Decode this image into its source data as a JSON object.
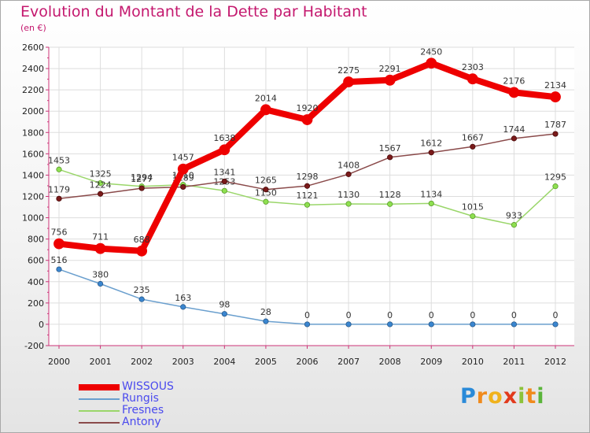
{
  "title": "Evolution du Montant de la Dette par Habitant",
  "subtitle": "(en €)",
  "logo": {
    "letters": [
      "P",
      "r",
      "o",
      "x",
      "i",
      "t",
      "i"
    ],
    "colors": [
      "#2a8ad8",
      "#f08a1c",
      "#f0b21c",
      "#e23a1c",
      "#8cc33a",
      "#f08a1c",
      "#5ab43a"
    ]
  },
  "chart_data": {
    "type": "line",
    "title": "Evolution du Montant de la Dette par Habitant",
    "ylabel": "(en €)",
    "x": [
      "2000",
      "2001",
      "2002",
      "2003",
      "2004",
      "2005",
      "2006",
      "2007",
      "2008",
      "2009",
      "2010",
      "2011",
      "2012"
    ],
    "ylim": [
      -200,
      2600
    ],
    "yticks": [
      "-200",
      "0",
      "200",
      "400",
      "600",
      "800",
      "1000",
      "1200",
      "1400",
      "1600",
      "1800",
      "2000",
      "2200",
      "2400",
      "2600"
    ],
    "grid": true,
    "legend_position": "bottom-left",
    "series": [
      {
        "name": "WISSOUS",
        "color": "#ee0000",
        "values": [
          756,
          711,
          688,
          1457,
          1638,
          2014,
          1920,
          2275,
          2291,
          2450,
          2303,
          2176,
          2134
        ],
        "labels": [
          "756",
          "711",
          "688",
          "1457",
          "1638",
          "2014",
          "1920",
          "2275",
          "2291",
          "2450",
          "2303",
          "2176",
          "2134"
        ]
      },
      {
        "name": "Rungis",
        "color": "#6a9fce",
        "values": [
          516,
          380,
          235,
          163,
          98,
          28,
          0,
          0,
          0,
          0,
          0,
          0,
          0
        ],
        "labels": [
          "516",
          "380",
          "235",
          "163",
          "98",
          "28",
          "0",
          "0",
          "0",
          "0",
          "0",
          "0",
          "0"
        ]
      },
      {
        "name": "Fresnes",
        "color": "#9ad66a",
        "values": [
          1453,
          1325,
          1294,
          1310,
          1253,
          1150,
          1121,
          1130,
          1128,
          1134,
          1015,
          933,
          1295
        ],
        "labels": [
          "1453",
          "1325",
          "1294",
          "1310",
          "1253",
          "1150",
          "1121",
          "1130",
          "1128",
          "1134",
          "1015",
          "933",
          "1295"
        ]
      },
      {
        "name": "Antony",
        "color": "#8a4a4a",
        "values": [
          1179,
          1224,
          1277,
          1289,
          1341,
          1265,
          1298,
          1408,
          1567,
          1612,
          1667,
          1744,
          1787
        ],
        "labels": [
          "1179",
          "1224",
          "1277",
          "1289",
          "1341",
          "1265",
          "1298",
          "1408",
          "1567",
          "1612",
          "1667",
          "1744",
          "1787"
        ]
      }
    ]
  }
}
